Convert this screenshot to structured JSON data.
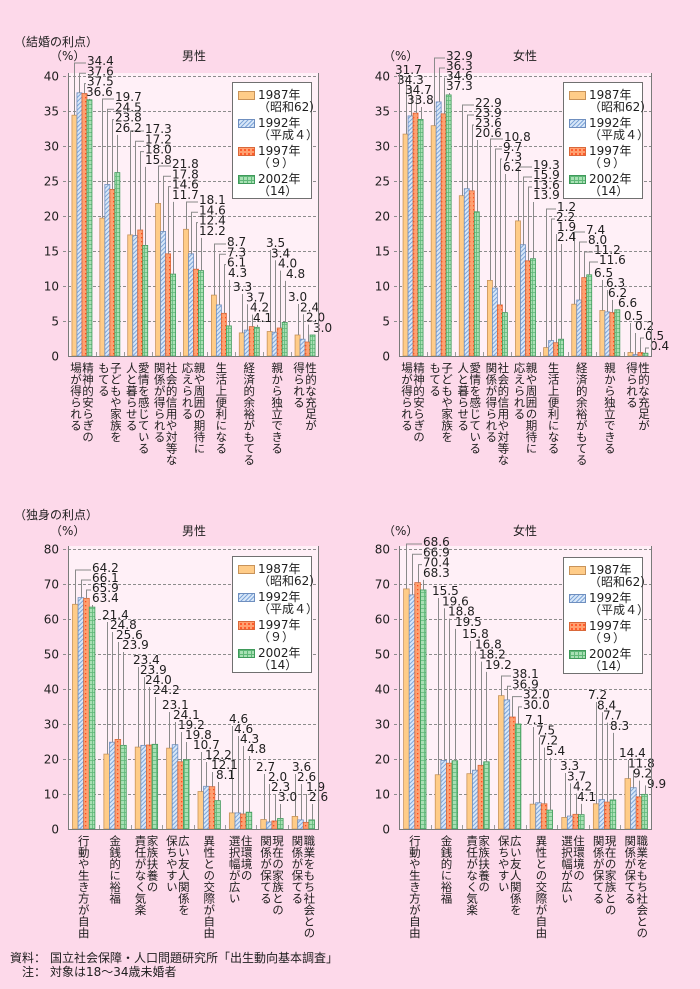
{
  "page": {
    "marriage_heading": "（結婚の利点）",
    "single_heading": "（独身の利点）",
    "source_label": "資料：",
    "source_text": "国立社会保障・人口問題研究所「出生動向基本調査」",
    "note_label": "注：",
    "note_text": "対象は18～34歳未婚者"
  },
  "legend": [
    {
      "year": "1987年",
      "era": "（昭和62）",
      "color": "#FFCC88"
    },
    {
      "year": "1992年",
      "era": "（平成４）",
      "color": "#D8E7F8"
    },
    {
      "year": "1997年",
      "era": "（９）",
      "color": "#FFA070"
    },
    {
      "year": "2002年",
      "era": "（14）",
      "color": "#A8E0B4"
    }
  ],
  "chart_data": [
    {
      "type": "bar",
      "group": "結婚の利点",
      "title": "男性",
      "ylabel": "（%）",
      "xlabel": "",
      "ylim": [
        0,
        40
      ],
      "yticks": [
        0,
        5,
        10,
        15,
        20,
        25,
        30,
        35,
        40
      ],
      "grid": true,
      "legend": "top-right",
      "decimals": 1,
      "categories": [
        "精神的安らぎの\n場が得られる",
        "子どもや家族を\nもてる",
        "愛情を感じている\n人と暮らせる",
        "社会的信用や対等な\n関係が得られる",
        "親や周囲の期待に\n応えられる",
        "生活上便利になる",
        "経済的余裕がもてる",
        "親から独立できる",
        "性的な充足が\n得られる"
      ],
      "series": [
        {
          "name": "1987年（昭和62）",
          "values": [
            34.4,
            19.7,
            17.3,
            21.8,
            18.1,
            8.7,
            3.3,
            3.5,
            3.0
          ]
        },
        {
          "name": "1992年（平成４）",
          "values": [
            37.6,
            24.5,
            17.2,
            17.8,
            14.6,
            7.3,
            3.7,
            3.4,
            2.4
          ]
        },
        {
          "name": "1997年（９）",
          "values": [
            37.5,
            23.8,
            18.0,
            14.6,
            12.4,
            6.1,
            4.2,
            4.0,
            2.0
          ]
        },
        {
          "name": "2002年（14）",
          "values": [
            36.6,
            26.2,
            15.8,
            11.7,
            12.2,
            4.3,
            4.1,
            4.8,
            3.0
          ]
        }
      ]
    },
    {
      "type": "bar",
      "group": "結婚の利点",
      "title": "女性",
      "ylabel": "（%）",
      "xlabel": "",
      "ylim": [
        0,
        40
      ],
      "yticks": [
        0,
        5,
        10,
        15,
        20,
        25,
        30,
        35,
        40
      ],
      "grid": true,
      "legend": "top-right",
      "decimals": 1,
      "categories": [
        "精神的安らぎの\n場が得られる",
        "子どもや家族を\nもてる",
        "愛情を感じている\n人と暮らせる",
        "社会的信用や対等な\n関係が得られる",
        "親や周囲の期待に\n応えられる",
        "生活上便利になる",
        "経済的余裕がもてる",
        "親から独立できる",
        "性的な充足が\n得られる"
      ],
      "series": [
        {
          "name": "1987年（昭和62）",
          "values": [
            31.7,
            32.9,
            22.9,
            10.8,
            19.3,
            1.2,
            7.4,
            6.5,
            0.5
          ]
        },
        {
          "name": "1992年（平成４）",
          "values": [
            34.3,
            36.3,
            23.9,
            9.7,
            15.9,
            2.2,
            8.0,
            6.3,
            0.2
          ]
        },
        {
          "name": "1997年（９）",
          "values": [
            34.7,
            34.6,
            23.6,
            7.3,
            13.6,
            1.9,
            11.2,
            6.2,
            0.5
          ]
        },
        {
          "name": "2002年（14）",
          "values": [
            33.8,
            37.3,
            20.6,
            6.2,
            13.9,
            2.4,
            11.6,
            6.6,
            0.4
          ]
        }
      ]
    },
    {
      "type": "bar",
      "group": "独身の利点",
      "title": "男性",
      "ylabel": "（%）",
      "xlabel": "",
      "ylim": [
        0,
        80
      ],
      "yticks": [
        0,
        10,
        20,
        30,
        40,
        50,
        60,
        70,
        80
      ],
      "grid": true,
      "legend": "top-right",
      "decimals": 1,
      "categories": [
        "行動や生き方が自由",
        "金銭的に裕福",
        "家族扶養の\n責任がなく気楽",
        "広い友人関係を\n保ちやすい",
        "異性との交際が自由",
        "住環境の\n選択幅が広い",
        "現在の家族との\n関係が保てる",
        "職業をもち社会との\n関係が保てる"
      ],
      "series": [
        {
          "name": "1987年（昭和62）",
          "values": [
            64.2,
            21.4,
            23.4,
            23.1,
            10.7,
            4.6,
            2.7,
            3.6
          ]
        },
        {
          "name": "1992年（平成４）",
          "values": [
            66.1,
            24.8,
            23.9,
            24.1,
            12.2,
            4.6,
            2.0,
            2.6
          ]
        },
        {
          "name": "1997年（９）",
          "values": [
            65.9,
            25.6,
            24.0,
            19.2,
            12.1,
            4.3,
            2.3,
            1.9
          ]
        },
        {
          "name": "2002年（14）",
          "values": [
            63.4,
            23.9,
            24.2,
            19.8,
            8.1,
            4.8,
            3.0,
            2.6
          ]
        }
      ]
    },
    {
      "type": "bar",
      "group": "独身の利点",
      "title": "女性",
      "ylabel": "（%）",
      "xlabel": "",
      "ylim": [
        0,
        80
      ],
      "yticks": [
        0,
        10,
        20,
        30,
        40,
        50,
        60,
        70,
        80
      ],
      "grid": true,
      "legend": "top-right",
      "decimals": 1,
      "categories": [
        "行動や生き方が自由",
        "金銭的に裕福",
        "家族扶養の\n責任がなく気楽",
        "広い友人関係を\n保ちやすい",
        "異性との交際が自由",
        "住環境の\n選択幅が広い",
        "現在の家族との\n関係が保てる",
        "職業をもち社会との\n関係が保てる"
      ],
      "series": [
        {
          "name": "1987年（昭和62）",
          "values": [
            68.6,
            15.5,
            15.8,
            38.1,
            7.1,
            3.3,
            7.2,
            14.4
          ]
        },
        {
          "name": "1992年（平成４）",
          "values": [
            66.9,
            19.6,
            16.8,
            36.9,
            7.5,
            3.7,
            8.4,
            11.8
          ]
        },
        {
          "name": "1997年（９）",
          "values": [
            70.4,
            18.8,
            18.2,
            32.0,
            7.2,
            4.2,
            7.7,
            9.2
          ]
        },
        {
          "name": "2002年（14）",
          "values": [
            68.3,
            19.5,
            19.2,
            30.0,
            5.4,
            4.1,
            8.3,
            9.9
          ]
        }
      ]
    }
  ]
}
